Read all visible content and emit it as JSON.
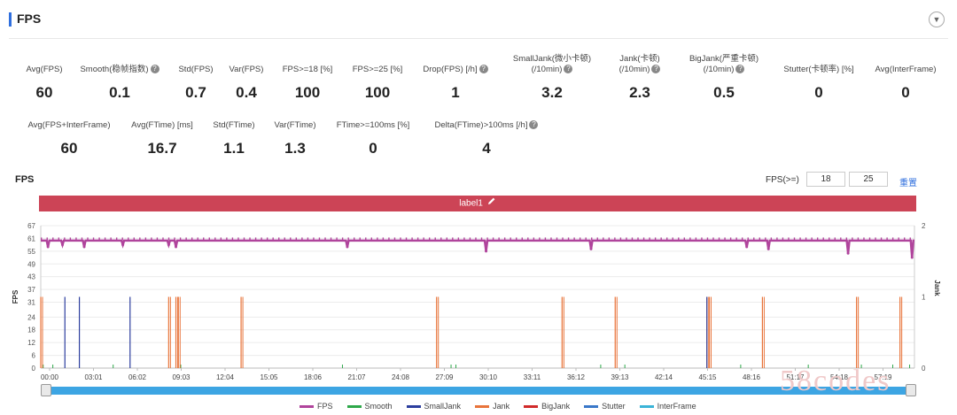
{
  "header": {
    "title": "FPS"
  },
  "metrics_row1": [
    {
      "label": "Avg(FPS)",
      "value": "60",
      "help": false
    },
    {
      "label": "Smooth(稳帧指数)",
      "value": "0.1",
      "help": true
    },
    {
      "label": "Std(FPS)",
      "value": "0.7",
      "help": false
    },
    {
      "label": "Var(FPS)",
      "value": "0.4",
      "help": false
    },
    {
      "label": "FPS>=18 [%]",
      "value": "100",
      "help": false
    },
    {
      "label": "FPS>=25 [%]",
      "value": "100",
      "help": false
    },
    {
      "label": "Drop(FPS) [/h]",
      "value": "1",
      "help": true
    },
    {
      "label": "SmallJank(微小卡顿)",
      "label2": "(/10min)",
      "value": "3.2",
      "help": true
    },
    {
      "label": "Jank(卡顿)",
      "label2": "(/10min)",
      "value": "2.3",
      "help": true
    },
    {
      "label": "BigJank(严重卡顿)",
      "label2": "(/10min)",
      "value": "0.5",
      "help": true
    },
    {
      "label": "Stutter(卡顿率) [%]",
      "value": "0",
      "help": false
    },
    {
      "label": "Avg(InterFrame)",
      "value": "0",
      "help": false
    }
  ],
  "metrics_row2": [
    {
      "label": "Avg(FPS+InterFrame)",
      "value": "60",
      "help": false
    },
    {
      "label": "Avg(FTime) [ms]",
      "value": "16.7",
      "help": false
    },
    {
      "label": "Std(FTime)",
      "value": "1.1",
      "help": false
    },
    {
      "label": "Var(FTime)",
      "value": "1.3",
      "help": false
    },
    {
      "label": "FTime>=100ms [%]",
      "value": "0",
      "help": false
    },
    {
      "label": "Delta(FTime)>100ms [/h]",
      "value": "4",
      "help": true
    }
  ],
  "chart_section": {
    "title": "FPS",
    "filter_label": "FPS(>=)",
    "filter_value_1": "18",
    "filter_value_2": "25",
    "reset_label": "重置",
    "band_label": "label1"
  },
  "watermark": "58codes",
  "colors": {
    "fps": "#b0449c",
    "smooth": "#2ea84a",
    "smalljank": "#2c3e9e",
    "jank": "#e8743b",
    "bigjank": "#d12a2a",
    "stutter": "#3a78c9",
    "interframe": "#3bb4d8",
    "label_band": "#cc4456",
    "slider": "#3da5e3"
  },
  "chart_data": {
    "type": "line",
    "title": "",
    "ylabel": "FPS",
    "y2label": "Jank",
    "ylim": [
      0,
      67
    ],
    "y2lim": [
      0,
      2
    ],
    "yticks": [
      0,
      6,
      12,
      18,
      24,
      31,
      37,
      43,
      49,
      55,
      61,
      67
    ],
    "y2ticks": [
      0,
      1,
      2
    ],
    "x_ticks": [
      "00:00",
      "03:01",
      "06:02",
      "09:03",
      "12:04",
      "15:05",
      "18:06",
      "21:07",
      "24:08",
      "27:09",
      "30:10",
      "33:11",
      "36:12",
      "39:13",
      "42:14",
      "45:15",
      "48:16",
      "51:17",
      "54:18",
      "57:19"
    ],
    "x_range_seconds": [
      0,
      3620
    ],
    "legend": [
      "FPS",
      "Smooth",
      "SmallJank",
      "Jank",
      "BigJank",
      "Stutter",
      "InterFrame"
    ],
    "fps_baseline": 60,
    "fps_dips": [
      {
        "t": 30,
        "v": 57
      },
      {
        "t": 90,
        "v": 58
      },
      {
        "t": 180,
        "v": 57
      },
      {
        "t": 340,
        "v": 58
      },
      {
        "t": 530,
        "v": 58
      },
      {
        "t": 560,
        "v": 57
      },
      {
        "t": 1270,
        "v": 57
      },
      {
        "t": 1845,
        "v": 55
      },
      {
        "t": 2280,
        "v": 56
      },
      {
        "t": 2925,
        "v": 57
      },
      {
        "t": 3015,
        "v": 56
      },
      {
        "t": 3345,
        "v": 54
      },
      {
        "t": 3610,
        "v": 52
      }
    ],
    "jank_events_seconds": [
      0,
      530,
      560,
      570,
      830,
      1640,
      2160,
      2380,
      2760,
      2770,
      2990,
      3380,
      3560
    ],
    "smalljank_events_seconds": [
      100,
      160,
      370,
      2760
    ],
    "smooth_events_seconds": [
      10,
      50,
      300,
      580,
      1250,
      1700,
      1720,
      2320,
      2420,
      2900,
      3180,
      3400,
      3530,
      3600
    ]
  },
  "icons": {
    "collapse": "chevron-down-icon",
    "help": "question-circle-icon",
    "edit": "pencil-icon"
  }
}
